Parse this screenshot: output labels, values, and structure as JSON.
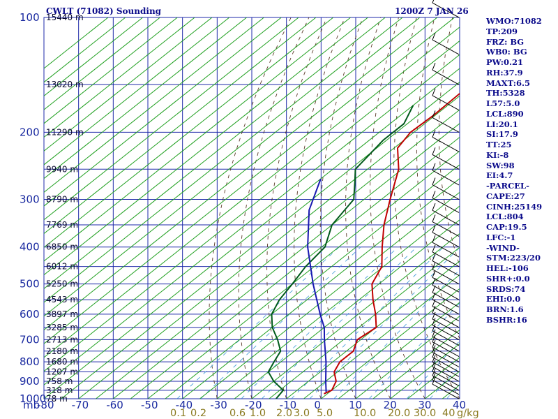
{
  "header": {
    "station": "CWLT (71082) Sounding",
    "valid_time": "1200Z  7 JAN 26"
  },
  "indices": [
    "WMO:71082",
    "TP:209",
    "FRZ: BG",
    "WB0: BG",
    "PW:0.21",
    "RH:37.9",
    "MAXT:6.5",
    "TH:5328",
    "L57:5.0",
    "LCL:890",
    "LI:20.1",
    "SI:17.9",
    "TT:25",
    "KI:-8",
    "SW:98",
    "EI:4.7",
    "-PARCEL-",
    "CAPE:27",
    "CINH:25149",
    "LCL:804",
    "CAP:19.5",
    "LFC:-1",
    "-WIND-",
    "STM:223/20",
    "HEL:-106",
    "SHR+:0.0",
    "SRDS:74",
    "EHI:0.0",
    "BRN:1.6",
    "BSHR:16"
  ],
  "colors": {
    "grid": "#1e2aa8",
    "isotherm": "#20a020",
    "temperature": "#c00000",
    "dewpoint": "#005a1a",
    "parcel": "#1818b0",
    "dry_adiabat": "#5a3a28",
    "mixing_ratio": "#4aa0d8",
    "text": "#0a0a8a",
    "wind_barb": "#000000"
  },
  "chart_data": {
    "type": "line",
    "title": "CWLT (71082) Sounding",
    "subtitle": "1200Z  7 JAN 26",
    "x_axis": {
      "unit": "C",
      "ticks": [
        -80,
        -70,
        -60,
        -50,
        -40,
        -30,
        -20,
        -10,
        0,
        10,
        20,
        30,
        40
      ],
      "tick_labels": [
        "-80",
        "-70",
        "-60",
        "-50",
        "-40",
        "-30",
        "-20",
        "-10",
        "0",
        "10",
        "20",
        "30",
        "40"
      ],
      "range": [
        -80,
        40
      ]
    },
    "y_axis": {
      "unit": "mb",
      "scale": "log",
      "ticks": [
        100,
        200,
        300,
        400,
        500,
        600,
        700,
        800,
        900,
        1000
      ],
      "range": [
        100,
        1000
      ]
    },
    "height_labels": [
      {
        "p": 100,
        "label": "15440 m"
      },
      {
        "p": 150,
        "label": "13020 m"
      },
      {
        "p": 200,
        "label": "11290 m"
      },
      {
        "p": 250,
        "label": "9940 m"
      },
      {
        "p": 300,
        "label": "8790 m"
      },
      {
        "p": 350,
        "label": "7769 m"
      },
      {
        "p": 400,
        "label": "6850 m"
      },
      {
        "p": 450,
        "label": "6012 m"
      },
      {
        "p": 500,
        "label": "5250 m"
      },
      {
        "p": 550,
        "label": "4543 m"
      },
      {
        "p": 600,
        "label": "3897 m"
      },
      {
        "p": 650,
        "label": "3285 m"
      },
      {
        "p": 700,
        "label": "2713 m"
      },
      {
        "p": 750,
        "label": "2180 m"
      },
      {
        "p": 800,
        "label": "1680 m"
      },
      {
        "p": 850,
        "label": "1207 m"
      },
      {
        "p": 900,
        "label": "758 m"
      },
      {
        "p": 950,
        "label": "318 m"
      },
      {
        "p": 1000,
        "label": "78 m"
      }
    ],
    "mixing_ratio_labels": [
      "0.1",
      "0.2",
      "0.6",
      "1.0",
      "2.0",
      "3.0",
      "5.0",
      "10.0",
      "20.0",
      "30.0",
      "40"
    ],
    "mixing_ratio_unit": "g/kg",
    "series": [
      {
        "key": "temperature",
        "points": [
          [
            100,
            -70
          ],
          [
            120,
            -70.5
          ],
          [
            150,
            -71
          ],
          [
            180,
            -70.5
          ],
          [
            200,
            -71
          ],
          [
            220,
            -69
          ],
          [
            250,
            -61
          ],
          [
            300,
            -52.5
          ],
          [
            350,
            -45
          ],
          [
            400,
            -37.5
          ],
          [
            450,
            -30.5
          ],
          [
            500,
            -27
          ],
          [
            550,
            -21
          ],
          [
            600,
            -15
          ],
          [
            650,
            -10
          ],
          [
            700,
            -11
          ],
          [
            750,
            -8
          ],
          [
            800,
            -8
          ],
          [
            850,
            -6
          ],
          [
            900,
            -2
          ],
          [
            950,
            0
          ],
          [
            970,
            -1
          ]
        ]
      },
      {
        "key": "dewpoint",
        "points": [
          [
            170,
            -80
          ],
          [
            190,
            -76
          ],
          [
            210,
            -76
          ],
          [
            250,
            -73.5
          ],
          [
            270,
            -69
          ],
          [
            300,
            -63
          ],
          [
            350,
            -60
          ],
          [
            400,
            -54
          ],
          [
            450,
            -52.5
          ],
          [
            500,
            -50
          ],
          [
            550,
            -48
          ],
          [
            600,
            -45
          ],
          [
            650,
            -40
          ],
          [
            700,
            -34
          ],
          [
            750,
            -29
          ],
          [
            800,
            -27
          ],
          [
            850,
            -25
          ],
          [
            900,
            -20
          ],
          [
            950,
            -14
          ],
          [
            1000,
            -13
          ]
        ]
      },
      {
        "key": "parcel",
        "points": [
          [
            265,
            -80
          ],
          [
            320,
            -72
          ],
          [
            400,
            -59
          ],
          [
            500,
            -44
          ],
          [
            600,
            -31
          ],
          [
            650,
            -25
          ],
          [
            700,
            -20.5
          ],
          [
            800,
            -12
          ],
          [
            900,
            -5
          ],
          [
            960,
            -1
          ]
        ]
      }
    ]
  }
}
